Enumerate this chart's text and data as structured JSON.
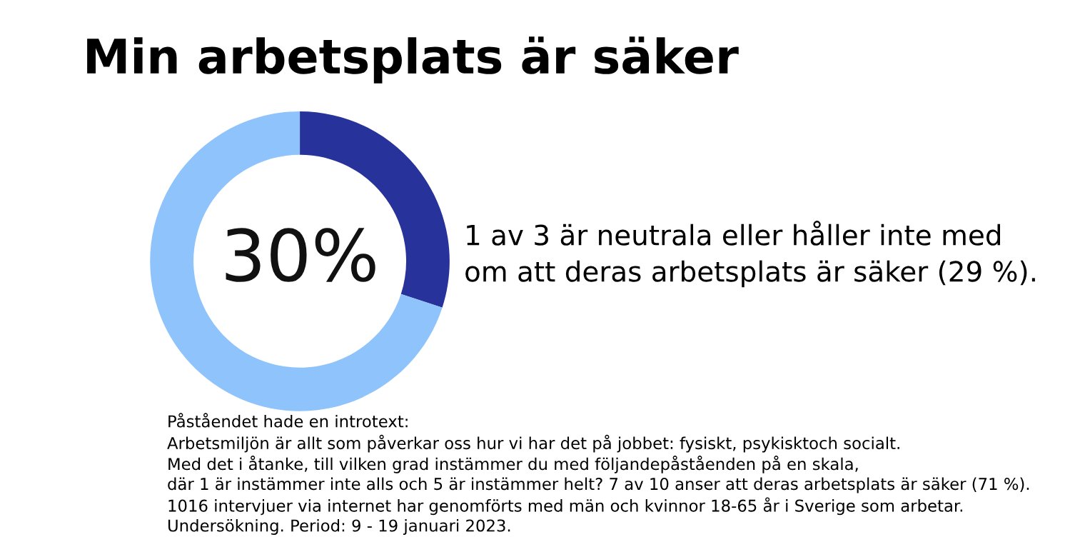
{
  "chart_data": {
    "type": "donut",
    "title": "Min arbetsplats är säker",
    "categories": [
      null,
      null
    ],
    "values": [
      30,
      70
    ],
    "colors": [
      "#27339a",
      "#8ec3fb"
    ],
    "value_labels": [
      "30%",
      null
    ],
    "annotations": [
      "1 av 3 är neutrala eller håller inte med\nom att deras arbetsplats är säker (29 %).",
      "Påståendet hade en introtext:",
      "Arbetsmiljön är allt som påverkar oss hur vi har det på jobbet: fysiskt, psykisktoch socialt.",
      "Med det i åtanke, till vilken grad instämmer du med följandepåståenden på en skala,",
      "där 1 är instämmer inte alls och 5 är instämmer helt? 7 av 10 anser att deras arbetsplats är säker (71 %).",
      "1016 intervjuer via internet har genomförts med män och kvinnor 18-65 år i Sverige som arbetar.",
      "Undersökning. Period: 9 - 19 januari 2023."
    ]
  }
}
